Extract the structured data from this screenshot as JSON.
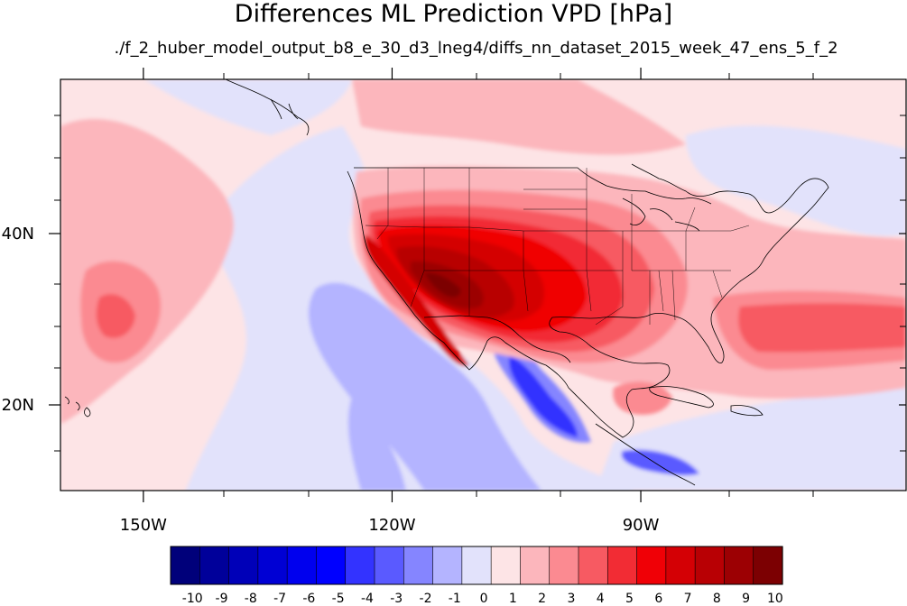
{
  "title": "Differences ML Prediction VPD [hPa]",
  "subtitle": "./f_2_huber_model_output_b8_e_30_d3_lneg4/diffs_nn_dataset_2015_week_47_ens_5_f_2",
  "map": {
    "projection": "cylindrical-equidistant",
    "lon_range": [
      -160,
      -58
    ],
    "lat_range": [
      10,
      58
    ],
    "lon_ticks": [
      {
        "label": "150W",
        "value": -150
      },
      {
        "label": "120W",
        "value": -120
      },
      {
        "label": "90W",
        "value": -90
      }
    ],
    "lat_ticks": [
      {
        "label": "40N",
        "value": 40
      },
      {
        "label": "20N",
        "value": 20
      }
    ],
    "field": "VPD difference",
    "units": "hPa",
    "colors": {
      "ocean_background": "#fde4e6",
      "coastline": "#000000"
    }
  },
  "colorbar": {
    "levels": [
      -10,
      -9,
      -8,
      -7,
      -6,
      -5,
      -4,
      -3,
      -2,
      -1,
      0,
      1,
      2,
      3,
      4,
      5,
      6,
      7,
      8,
      9,
      10
    ],
    "labels": [
      "-10",
      "-9",
      "-8",
      "-7",
      "-6",
      "-5",
      "-4",
      "-3",
      "-2",
      "-1",
      "0",
      "1",
      "2",
      "3",
      "4",
      "5",
      "6",
      "7",
      "8",
      "9",
      "10"
    ],
    "colors": [
      "#00007a",
      "#00009a",
      "#0000b8",
      "#0000d4",
      "#0000ee",
      "#0000ff",
      "#3333ff",
      "#5a5aff",
      "#8585ff",
      "#b4b4ff",
      "#e2e2fb",
      "#fde4e6",
      "#fcb6bc",
      "#fb8a91",
      "#f75a62",
      "#f22c34",
      "#f00006",
      "#d40005",
      "#b80004",
      "#9c0003",
      "#7c0002"
    ]
  }
}
